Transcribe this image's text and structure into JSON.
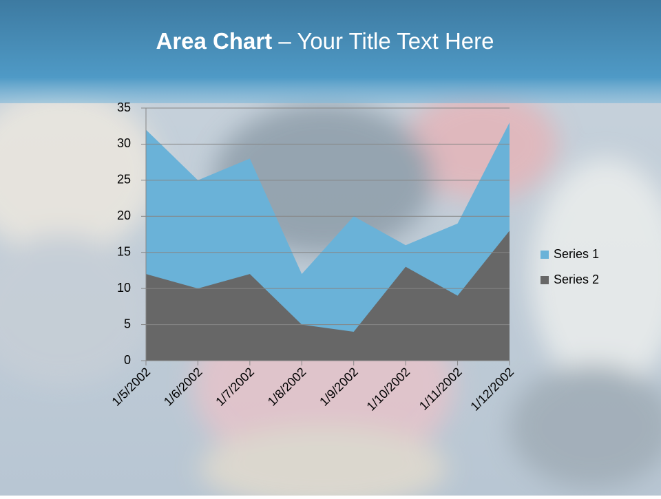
{
  "chart_data": {
    "type": "area",
    "title": [
      "Area Chart",
      "– Your Title Text Here"
    ],
    "categories": [
      "1/5/2002",
      "1/6/2002",
      "1/7/2002",
      "1/8/2002",
      "1/9/2002",
      "1/10/2002",
      "1/11/2002",
      "1/12/2002"
    ],
    "series": [
      {
        "name": "Series 1",
        "color": "#6ab2d8",
        "values": [
          32,
          25,
          28,
          12,
          20,
          16,
          19,
          33
        ]
      },
      {
        "name": "Series 2",
        "color": "#676767",
        "values": [
          12,
          10,
          12,
          5,
          4,
          13,
          9,
          18
        ]
      }
    ],
    "ylim": [
      0,
      35
    ],
    "yticks": [
      0,
      5,
      10,
      15,
      20,
      25,
      30,
      35
    ],
    "grid": true,
    "legend": "right"
  }
}
